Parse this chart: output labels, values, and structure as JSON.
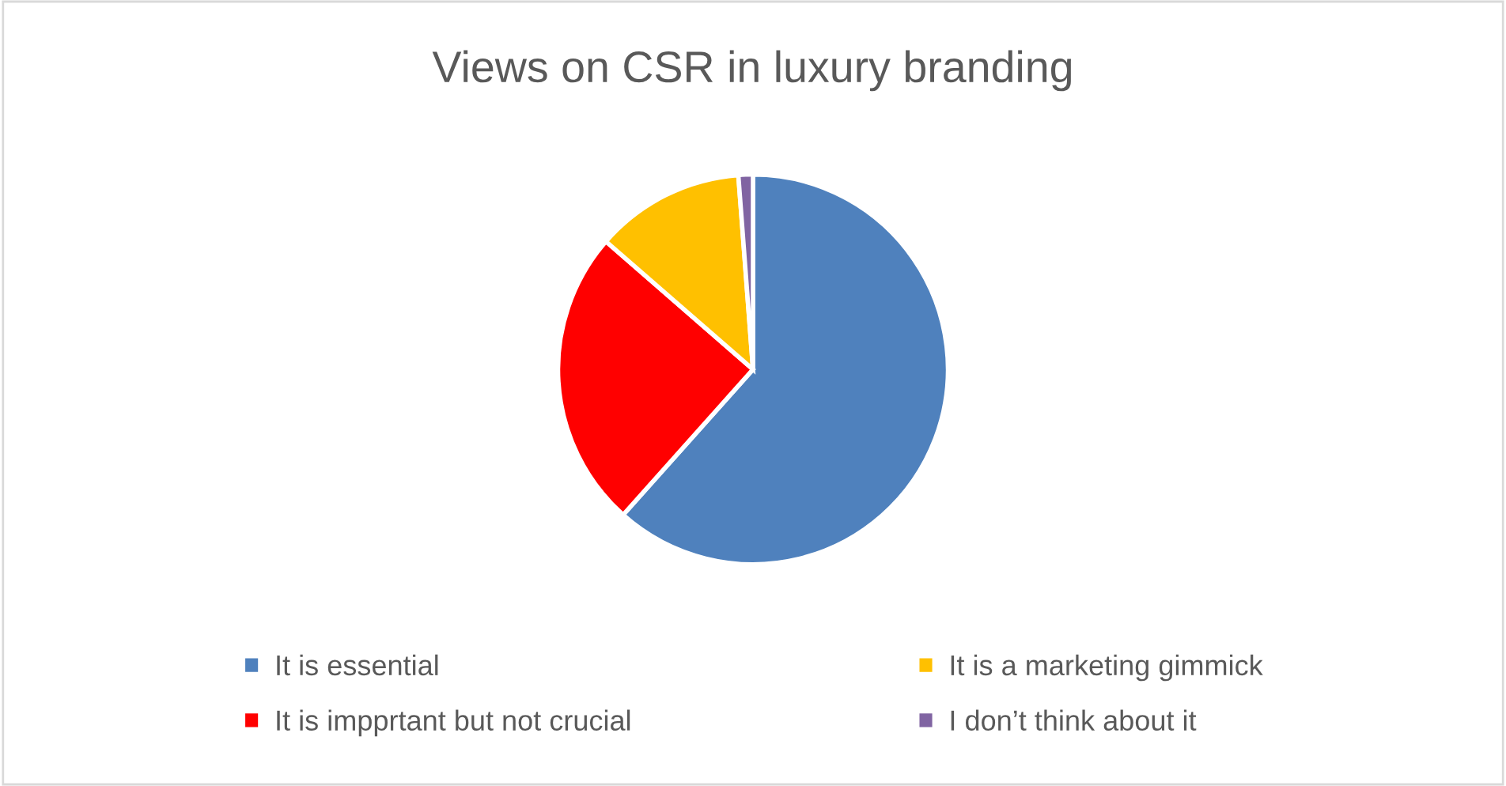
{
  "chart_data": {
    "type": "pie",
    "title": "Views on CSR in luxury branding",
    "categories": [
      "It is essential",
      "It is impprtant but not crucial",
      "It is a marketing gimmick",
      "I don’t think about it"
    ],
    "values": [
      61.6,
      24.8,
      12.4,
      1.2
    ],
    "colors": [
      "#4f81bd",
      "#ff0000",
      "#ffc000",
      "#8064a2"
    ],
    "legend": "bottom"
  }
}
